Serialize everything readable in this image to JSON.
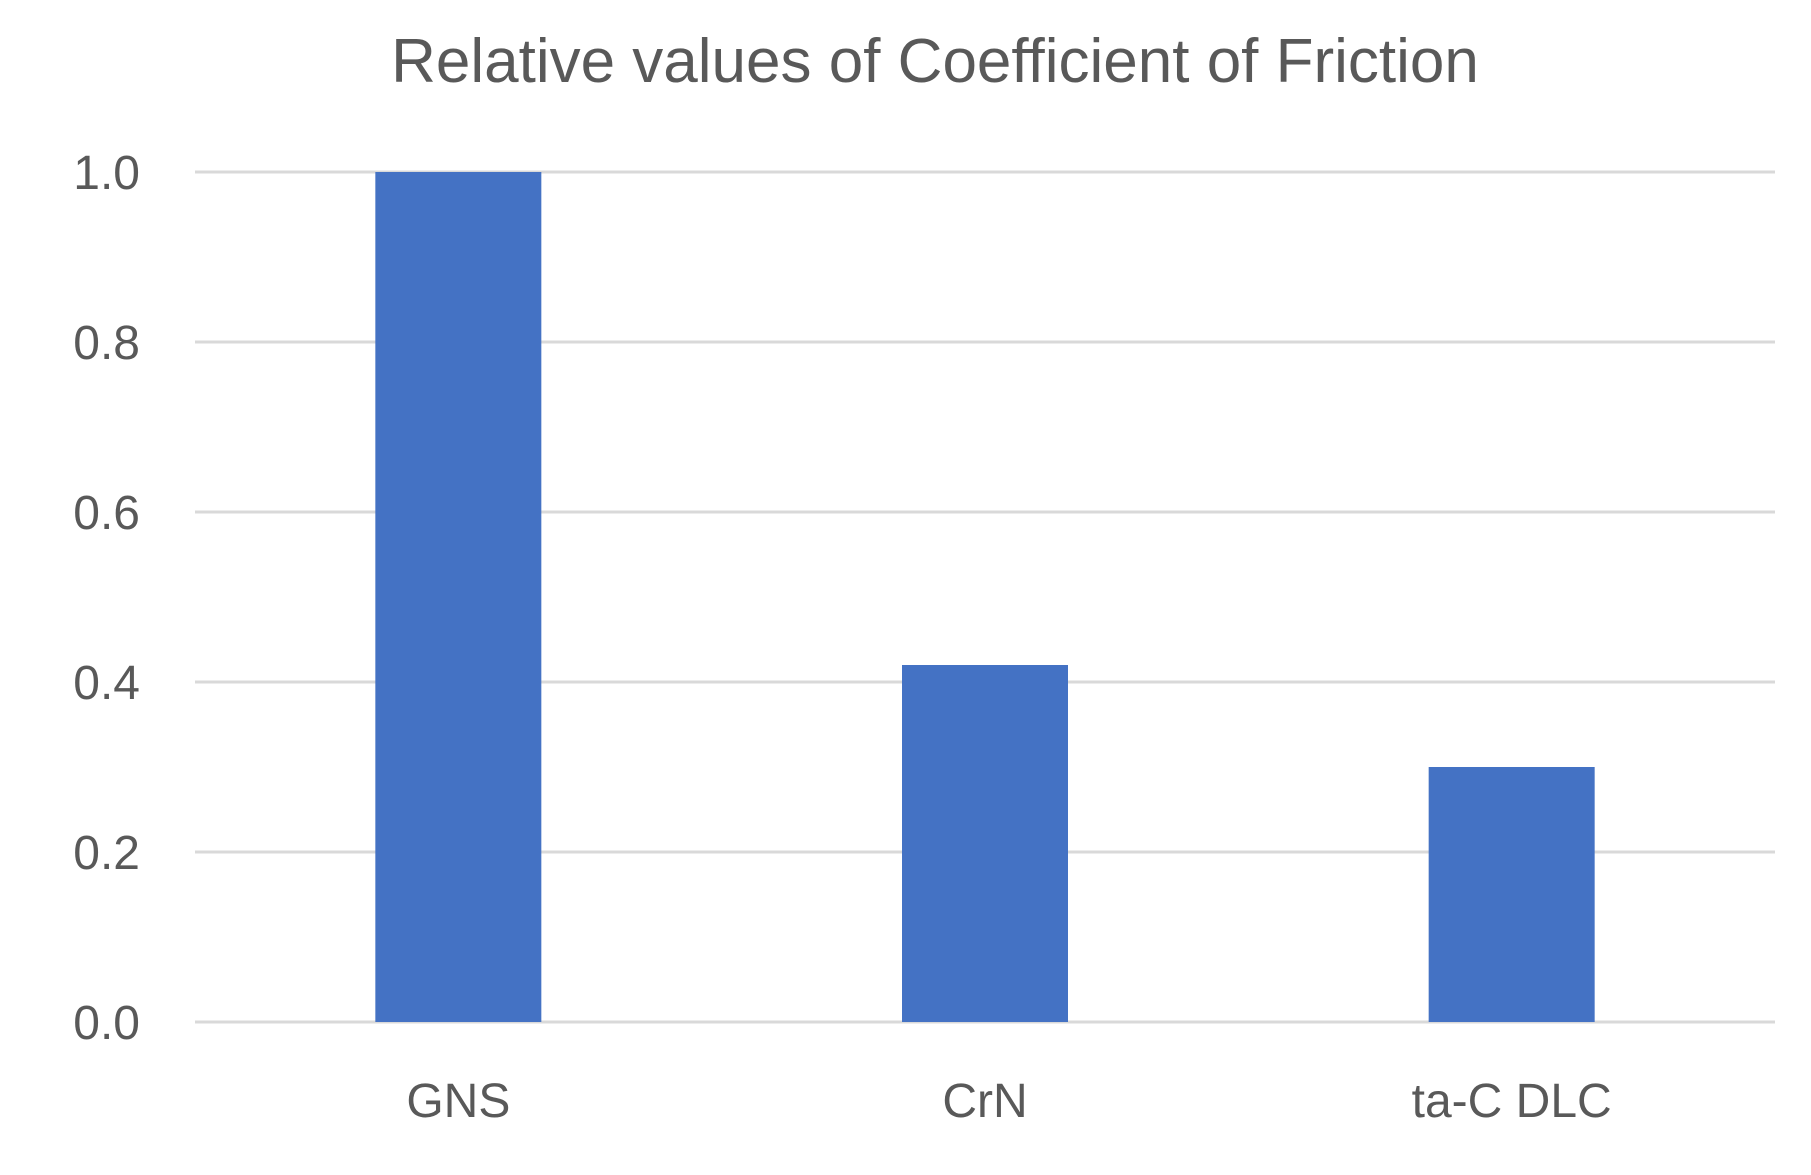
{
  "chart_data": {
    "type": "bar",
    "title": "Relative values of Coefficient of Friction",
    "xlabel": "",
    "ylabel": "",
    "categories": [
      "GNS",
      "CrN",
      "ta-C DLC"
    ],
    "values": [
      1.0,
      0.42,
      0.3
    ],
    "ylim": [
      0.0,
      1.0
    ],
    "yticks": [
      0.0,
      0.2,
      0.4,
      0.6,
      0.8,
      1.0
    ],
    "ytick_labels": [
      "0.0",
      "0.2",
      "0.4",
      "0.6",
      "0.8",
      "1.0"
    ],
    "grid": true,
    "bar_color": "#4472c4",
    "grid_color": "#d9d9d9",
    "text_color": "#595959"
  }
}
